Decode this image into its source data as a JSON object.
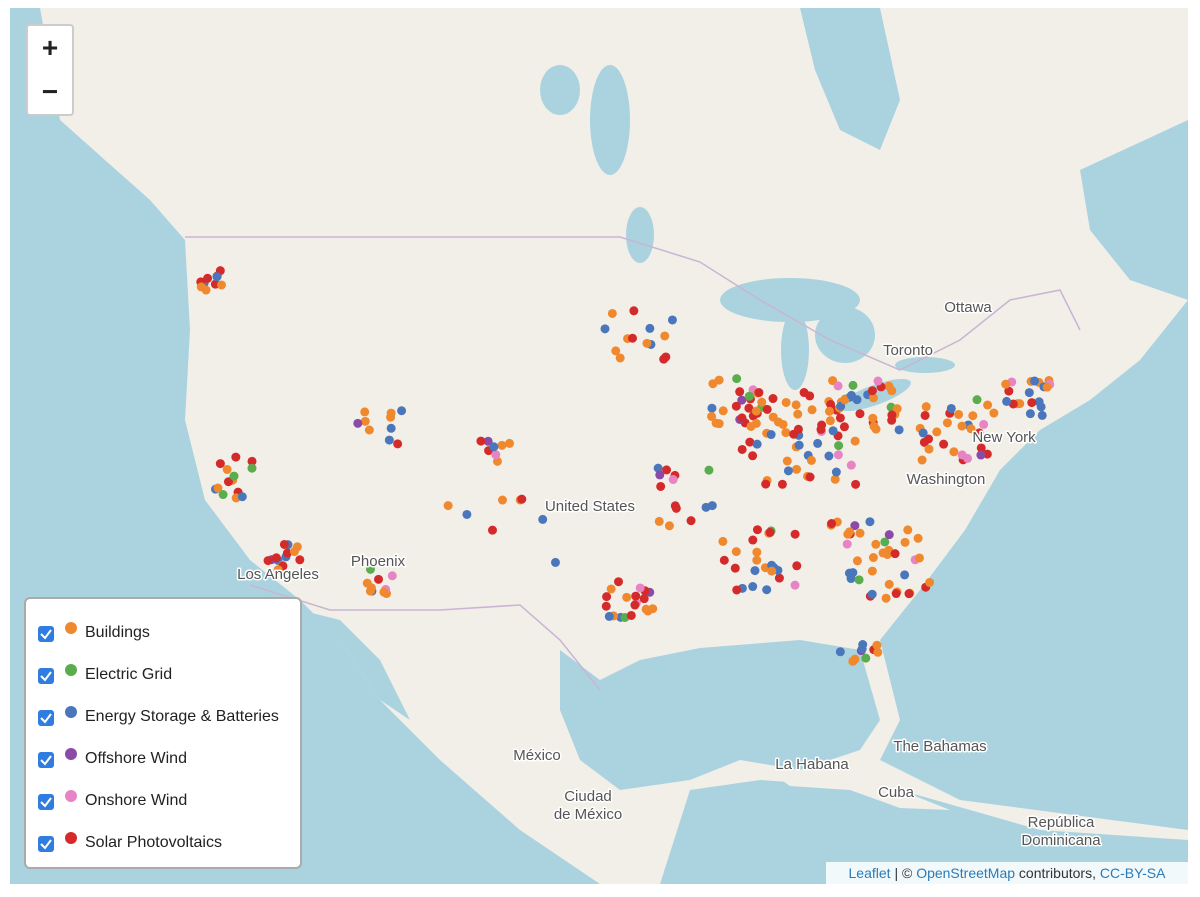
{
  "controls": {
    "zoom_in": "+",
    "zoom_out": "−"
  },
  "legend": {
    "items": [
      {
        "label": "Buildings",
        "color": "#f0892e"
      },
      {
        "label": "Electric Grid",
        "color": "#5aad4d"
      },
      {
        "label": "Energy Storage & Batteries",
        "color": "#4a77bb"
      },
      {
        "label": "Offshore Wind",
        "color": "#8b4aa8"
      },
      {
        "label": "Onshore Wind",
        "color": "#e784c4"
      },
      {
        "label": "Solar Photovoltaics",
        "color": "#d42a2a"
      }
    ]
  },
  "map": {
    "labels": [
      "Ottawa",
      "Toronto",
      "New York",
      "Washington",
      "United States",
      "Phoenix",
      "Los Angeles",
      "México",
      "La Habana",
      "The Bahamas",
      "Cuba",
      "Ciudad",
      "de México",
      "República",
      "Dominicana"
    ]
  },
  "attribution": {
    "leaflet": "Leaflet",
    "separator": "|",
    "copyright": "©",
    "osm": "OpenStreetMap",
    "contributors": "contributors,",
    "license": "CC-BY-SA"
  }
}
